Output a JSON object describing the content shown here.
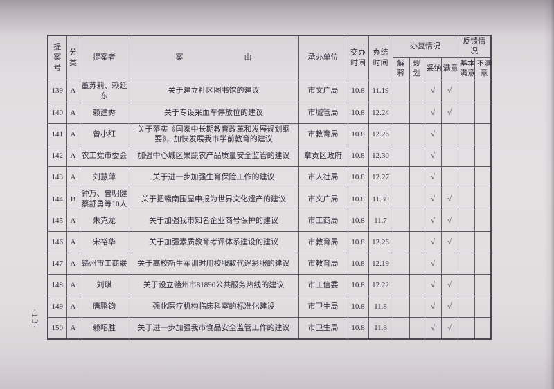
{
  "page": {
    "page_number": "·13·"
  },
  "table": {
    "headers": {
      "proposal_no": "提案号",
      "category": "分类",
      "proposer": "提案者",
      "subject": "案　　　　　　　　由",
      "undertaker": "承办单位",
      "assign_time": "交办时间",
      "finish_time": "办结时间",
      "group_reply": "办复情况",
      "group_feedback": "反馈情况",
      "sub_explain": "解释",
      "sub_plan": "规划",
      "sub_adopt": "采纳",
      "sub_satisfied": "满意",
      "sub_basically_satisfied": "基本满意",
      "sub_unsatisfied": "不满意"
    },
    "rows": [
      {
        "no": "139",
        "category": "A",
        "proposer": "董苏莉、赖延东",
        "subject": "关于建立社区图书馆的建议",
        "undertaker": "市文广局",
        "assign": "10.8",
        "finish": "11.19",
        "explain": "",
        "plan": "",
        "adopt": "√",
        "satisfied": "√",
        "basic": "",
        "unsat": ""
      },
      {
        "no": "140",
        "category": "A",
        "proposer": "赖建秀",
        "subject": "关于专设采血车停放位的建议",
        "undertaker": "市城管局",
        "assign": "10.8",
        "finish": "12.24",
        "explain": "",
        "plan": "",
        "adopt": "√",
        "satisfied": "√",
        "basic": "",
        "unsat": ""
      },
      {
        "no": "141",
        "category": "A",
        "proposer": "曾小红",
        "subject": "关于落实《国家中长期教育改革和发展规划纲要》，加快发展我市学前教育的建议",
        "undertaker": "市教育局",
        "assign": "10.8",
        "finish": "12.26",
        "explain": "",
        "plan": "",
        "adopt": "√",
        "satisfied": "",
        "basic": "",
        "unsat": ""
      },
      {
        "no": "142",
        "category": "A",
        "proposer": "农工党市委会",
        "subject": "加强中心城区果蔬农产品质量安全监管的建议",
        "undertaker": "章贡区政府",
        "assign": "10.8",
        "finish": "12.30",
        "explain": "",
        "plan": "",
        "adopt": "√",
        "satisfied": "",
        "basic": "",
        "unsat": ""
      },
      {
        "no": "143",
        "category": "A",
        "proposer": "刘慧萍",
        "subject": "关于进一步加强生育保险工作的建议",
        "undertaker": "市人社局",
        "assign": "10.8",
        "finish": "12.27",
        "explain": "",
        "plan": "",
        "adopt": "√",
        "satisfied": "",
        "basic": "",
        "unsat": ""
      },
      {
        "no": "144",
        "category": "B",
        "proposer": "钟万、曾明健蔡舒勇等10人",
        "subject": "关于把赣南围屋申报为世界文化遗产的建议",
        "undertaker": "市文广局",
        "assign": "10.8",
        "finish": "11.30",
        "explain": "",
        "plan": "",
        "adopt": "√",
        "satisfied": "√",
        "basic": "",
        "unsat": ""
      },
      {
        "no": "145",
        "category": "A",
        "proposer": "朱克龙",
        "subject": "关于加强我市知名企业商号保护的建议",
        "undertaker": "市工商局",
        "assign": "10.8",
        "finish": "11.7",
        "explain": "",
        "plan": "",
        "adopt": "√",
        "satisfied": "√",
        "basic": "",
        "unsat": ""
      },
      {
        "no": "146",
        "category": "A",
        "proposer": "宋裕华",
        "subject": "关于加强素质教育考评体系建设的建议",
        "undertaker": "市教育局",
        "assign": "10.8",
        "finish": "12.26",
        "explain": "",
        "plan": "",
        "adopt": "√",
        "satisfied": "√",
        "basic": "",
        "unsat": ""
      },
      {
        "no": "147",
        "category": "A",
        "proposer": "赣州市工商联",
        "subject": "关于高校新生军训时用校服取代迷彩服的建议",
        "undertaker": "市教育局",
        "assign": "10.8",
        "finish": "12.19",
        "explain": "",
        "plan": "",
        "adopt": "√",
        "satisfied": "",
        "basic": "",
        "unsat": ""
      },
      {
        "no": "148",
        "category": "A",
        "proposer": "刘琪",
        "subject": "关于设立赣州市81890公共服务热线的建议",
        "undertaker": "市工信委",
        "assign": "10.8",
        "finish": "12.22",
        "explain": "",
        "plan": "",
        "adopt": "√",
        "satisfied": "√",
        "basic": "",
        "unsat": ""
      },
      {
        "no": "149",
        "category": "A",
        "proposer": "唐鹏钧",
        "subject": "强化医疗机构临床科室的标准化建设",
        "undertaker": "市卫生局",
        "assign": "10.8",
        "finish": "11.8",
        "explain": "",
        "plan": "",
        "adopt": "√",
        "satisfied": "√",
        "basic": "",
        "unsat": ""
      },
      {
        "no": "150",
        "category": "A",
        "proposer": "赖昭胜",
        "subject": "关于进一步加强我市食品安全监管工作的建议",
        "undertaker": "市卫生局",
        "assign": "10.8",
        "finish": "11.8",
        "explain": "",
        "plan": "",
        "adopt": "√",
        "satisfied": "√",
        "basic": "",
        "unsat": ""
      }
    ]
  }
}
